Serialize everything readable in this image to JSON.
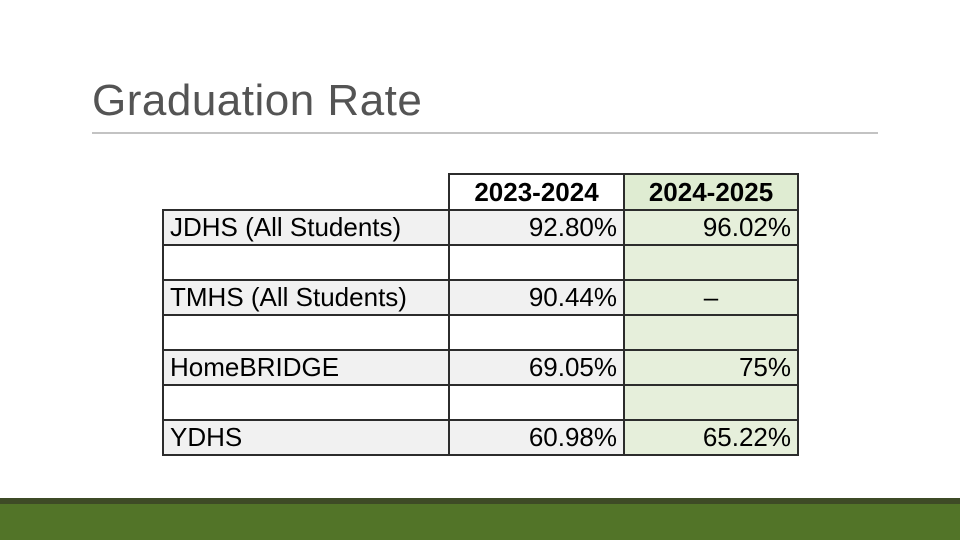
{
  "slide": {
    "title": "Graduation Rate"
  },
  "table": {
    "columns": [
      "",
      "2023-2024",
      "2024-2025"
    ],
    "rows": [
      {
        "label": "JDHS (All Students)",
        "y2324": "92.80%",
        "y2425": "96.02%"
      },
      {
        "label": "",
        "y2324": "",
        "y2425": ""
      },
      {
        "label": "TMHS (All Students)",
        "y2324": "90.44%",
        "y2425": "–"
      },
      {
        "label": "",
        "y2324": "",
        "y2425": ""
      },
      {
        "label": "HomeBRIDGE",
        "y2324": "69.05%",
        "y2425": "75%"
      },
      {
        "label": "",
        "y2324": "",
        "y2425": ""
      },
      {
        "label": "YDHS",
        "y2324": "60.98%",
        "y2425": "65.22%"
      }
    ]
  },
  "chart_data": {
    "type": "table",
    "title": "Graduation Rate",
    "categories": [
      "JDHS (All Students)",
      "TMHS (All Students)",
      "HomeBRIDGE",
      "YDHS"
    ],
    "series": [
      {
        "name": "2023-2024",
        "values": [
          92.8,
          90.44,
          69.05,
          60.98
        ]
      },
      {
        "name": "2024-2025",
        "values": [
          96.02,
          null,
          75,
          65.22
        ]
      }
    ]
  },
  "colors": {
    "title_text": "#545454",
    "title_rule": "#c3c3c3",
    "table_border": "#2c2c2c",
    "row_shade": "#f1f1f1",
    "highlight_header_green": "#dfecd2",
    "highlight_cell_green": "#e6efdb",
    "footer_dark_green": "#3e4b26",
    "footer_green": "#527428"
  }
}
